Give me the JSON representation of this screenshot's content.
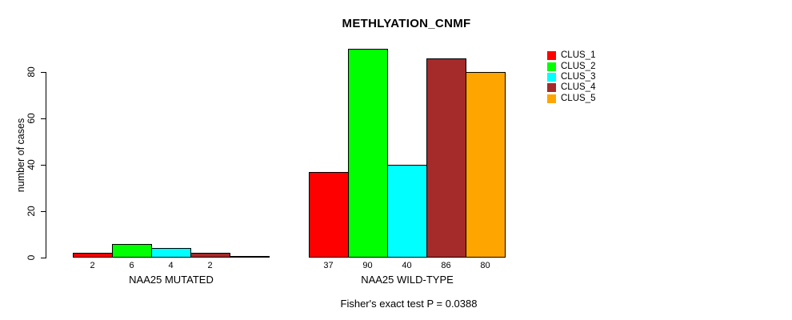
{
  "chart_data": {
    "type": "bar",
    "title": "METHLYATION_CNMF",
    "ylabel": "number of cases",
    "xlabel": "",
    "yticks": [
      0,
      20,
      40,
      60,
      80
    ],
    "ylim": [
      0,
      92
    ],
    "grid": false,
    "legend_position": "right",
    "series": [
      {
        "name": "CLUS_1",
        "color": "#ff0000"
      },
      {
        "name": "CLUS_2",
        "color": "#00ff00"
      },
      {
        "name": "CLUS_3",
        "color": "#00ffff"
      },
      {
        "name": "CLUS_4",
        "color": "#a52a2a"
      },
      {
        "name": "CLUS_5",
        "color": "#ffa500"
      }
    ],
    "groups": [
      {
        "label": "NAA25 MUTATED",
        "values": [
          2,
          6,
          4,
          2,
          0
        ]
      },
      {
        "label": "NAA25 WILD-TYPE",
        "values": [
          37,
          90,
          40,
          86,
          80
        ]
      }
    ],
    "bar_value_labels_shown": true,
    "caption": "Fisher's exact test P = 0.0388",
    "colors": {
      "background": "#ffffff",
      "axis": "#000000",
      "text": "#000000"
    }
  }
}
